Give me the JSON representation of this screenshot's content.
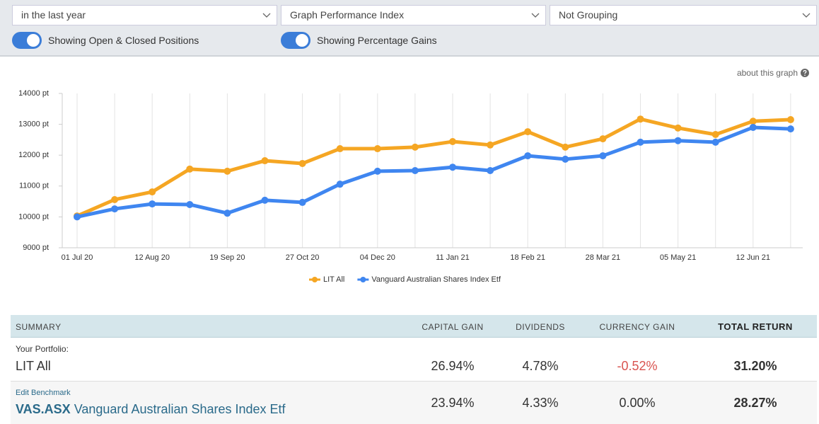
{
  "controls": {
    "period": "in the last year",
    "graph": "Graph Performance Index",
    "grouping": "Not Grouping",
    "toggle_positions": "Showing Open & Closed Positions",
    "toggle_gains": "Showing Percentage Gains"
  },
  "about": "about this graph",
  "chart_data": {
    "type": "line",
    "categories": [
      "01 Jul 20",
      null,
      "12 Aug 20",
      null,
      "19 Sep 20",
      null,
      "27 Oct 20",
      null,
      "04 Dec 20",
      null,
      "11 Jan 21",
      null,
      "18 Feb 21",
      null,
      "28 Mar 21",
      null,
      "05 May 21",
      null,
      "12 Jun 21",
      null
    ],
    "series": [
      {
        "name": "LIT All",
        "color": "#f5a623",
        "values": [
          10030,
          10560,
          10810,
          11550,
          11480,
          11820,
          11730,
          12210,
          12210,
          12260,
          12440,
          12330,
          12760,
          12260,
          12530,
          13170,
          12880,
          12670,
          13100,
          13150
        ]
      },
      {
        "name": "Vanguard Australian Shares Index Etf",
        "color": "#3f86f0",
        "values": [
          10000,
          10260,
          10420,
          10400,
          10120,
          10540,
          10470,
          11060,
          11480,
          11500,
          11610,
          11500,
          11980,
          11870,
          11980,
          12420,
          12470,
          12420,
          12900,
          12850
        ]
      }
    ],
    "ylim": [
      9000,
      14000
    ],
    "yticks": [
      {
        "value": 9000,
        "label": "9000 pt"
      },
      {
        "value": 10000,
        "label": "10000 pt"
      },
      {
        "value": 11000,
        "label": "11000 pt"
      },
      {
        "value": 12000,
        "label": "12000 pt"
      },
      {
        "value": 13000,
        "label": "13000 pt"
      },
      {
        "value": 14000,
        "label": "14000 pt"
      }
    ],
    "grid": true
  },
  "table": {
    "header": [
      "SUMMARY",
      "CAPITAL GAIN",
      "DIVIDENDS",
      "CURRENCY GAIN",
      "TOTAL RETURN"
    ],
    "portfolio": {
      "caption": "Your Portfolio:",
      "name": "LIT All",
      "cells": [
        "26.94%",
        "4.78%",
        "-0.52%",
        "31.20%"
      ]
    },
    "benchmark": {
      "caption": "Edit Benchmark",
      "code": "VAS.ASX",
      "name": "Vanguard Australian Shares Index Etf",
      "cells": [
        "23.94%",
        "4.33%",
        "0.00%",
        "28.27%"
      ]
    }
  }
}
